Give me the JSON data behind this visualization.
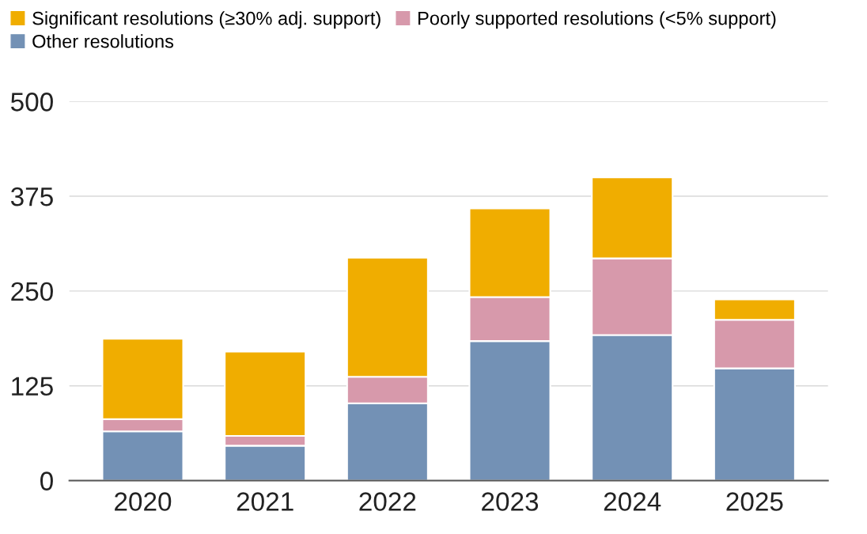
{
  "chart_data": {
    "type": "bar",
    "stacked": true,
    "categories": [
      "2020",
      "2021",
      "2022",
      "2023",
      "2024",
      "2025"
    ],
    "series": [
      {
        "name": "Other resolutions",
        "color": "#7391b5",
        "values": [
          65,
          46,
          102,
          184,
          192,
          148
        ]
      },
      {
        "name": "Poorly supported resolutions (<5% support)",
        "color": "#d799ab",
        "values": [
          16,
          13,
          35,
          58,
          101,
          64
        ]
      },
      {
        "name": "Significant resolutions (≥30% adj. support)",
        "color": "#f0ad00",
        "values": [
          106,
          111,
          157,
          117,
          107,
          27
        ]
      }
    ],
    "ylim": [
      0,
      500
    ],
    "yticks": [
      0,
      125,
      250,
      375,
      500
    ],
    "grid": "y",
    "legend": "top left"
  }
}
